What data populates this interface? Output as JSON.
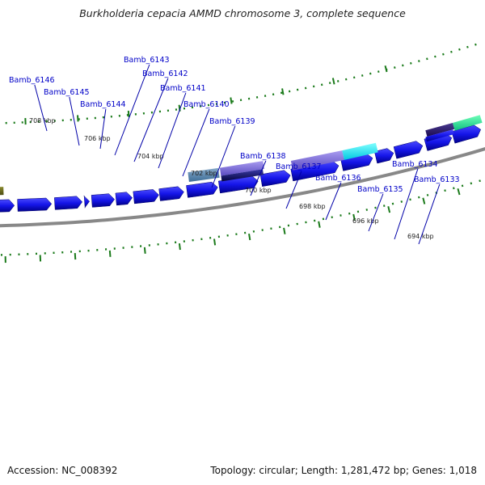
{
  "title": "Burkholderia cepacia AMMD chromosome 3, complete sequence",
  "footer": {
    "accession": "Accession: NC_008392",
    "summary": "Topology: circular; Length: 1,281,472 bp; Genes: 1,018"
  },
  "colors": {
    "gene": "#1010e0",
    "gene_dark": "#0000a8",
    "label": "#0000c8",
    "tick": "#1a7a1a",
    "backbone": "#888888"
  },
  "ticks": [
    {
      "label": "708 kbp"
    },
    {
      "label": "706 kbp"
    },
    {
      "label": "704 kbp"
    },
    {
      "label": "702 kbp"
    },
    {
      "label": "700 kbp"
    },
    {
      "label": "698 kbp"
    },
    {
      "label": "696 kbp"
    },
    {
      "label": "694 kbp"
    }
  ],
  "genes": [
    {
      "label": "Bamb_6146"
    },
    {
      "label": "Bamb_6145"
    },
    {
      "label": "Bamb_6144"
    },
    {
      "label": "Bamb_6143"
    },
    {
      "label": "Bamb_6142"
    },
    {
      "label": "Bamb_6141"
    },
    {
      "label": "Bamb_6140"
    },
    {
      "label": "Bamb_6139"
    },
    {
      "label": "Bamb_6138"
    },
    {
      "label": "Bamb_6137"
    },
    {
      "label": "Bamb_6136"
    },
    {
      "label": "Bamb_6135"
    },
    {
      "label": "Bamb_6134"
    },
    {
      "label": "Bamb_6133"
    }
  ]
}
